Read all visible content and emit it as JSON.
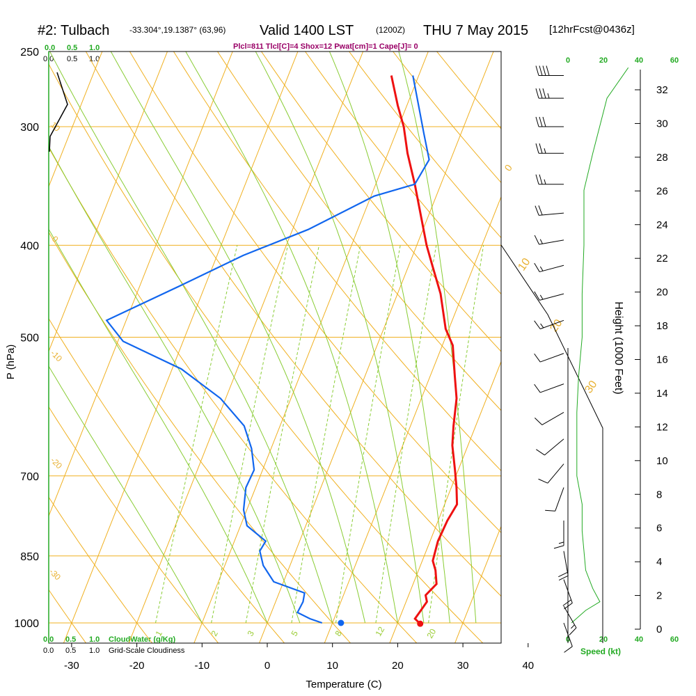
{
  "header": {
    "station": "#2: Tulbach",
    "coords": "-33.304°,19.1387° (63,96)",
    "valid": "Valid 1400 LST",
    "zulu": "(1200Z)",
    "date": "THU 7 May 2015",
    "forecast": "[12hrFcst@0436z]",
    "indices": "Plcl=811 Tlcl[C]=4 Shox=12 Pwat[cm]=1 Cape[J]= 0"
  },
  "cloud_scales": {
    "top_green": [
      "0.0",
      "0.5",
      "1.0"
    ],
    "top_black": [
      "0.0",
      "0.5",
      "1.0"
    ],
    "bottom_green": [
      "0.0",
      "0.5",
      "1.0"
    ],
    "bottom_green_label": "CloudWater (g/Kg)",
    "bottom_black": [
      "0.0",
      "0.5",
      "1.0"
    ],
    "bottom_black_label": "Grid-Scale Cloudiness"
  },
  "speed_axis": {
    "ticks_top": [
      "0",
      "20",
      "40",
      "60"
    ],
    "ticks_bottom": [
      "0",
      "20",
      "40",
      "60"
    ],
    "label": "Speed (kt)"
  },
  "isotherm_labels": [
    "0",
    "10",
    "20",
    "30"
  ],
  "dry_adiabat_labels": [
    "10",
    "0",
    "-10",
    "-20",
    "-30"
  ],
  "mixing_ratio_labels": [
    "1",
    "2",
    "3",
    "5",
    "8",
    "12",
    "20"
  ],
  "colors": {
    "temperature": "#ee1111",
    "dewpoint": "#1166ee",
    "isobar_isotherm": "#f0b020",
    "dry_adiabat": "#f0b020",
    "moist_adiabat": "#88cc33",
    "mixing_ratio": "#88cc33",
    "wind_speed": "#22aa22"
  },
  "chart_data": {
    "type": "line",
    "title": "#2: Tulbach",
    "xlabel": "Temperature (C)",
    "ylabel": "P (hPa)",
    "y2label": "Height (1000 Feet)",
    "x_ticks": [
      -30,
      -20,
      -10,
      0,
      10,
      20,
      30,
      40
    ],
    "p_ticks": [
      250,
      300,
      400,
      500,
      700,
      850,
      1000
    ],
    "height_ticks": [
      0,
      2,
      4,
      6,
      8,
      10,
      12,
      14,
      16,
      18,
      20,
      22,
      24,
      26,
      28,
      30,
      32
    ],
    "series": [
      {
        "name": "temperature",
        "points": [
          [
            23.5,
            1002
          ],
          [
            22.4,
            990
          ],
          [
            22.7,
            975
          ],
          [
            23.2,
            950
          ],
          [
            22.6,
            935
          ],
          [
            23.6,
            910
          ],
          [
            22.6,
            880
          ],
          [
            21.6,
            860
          ],
          [
            21.2,
            820
          ],
          [
            21.4,
            780
          ],
          [
            21.9,
            750
          ],
          [
            20.8,
            720
          ],
          [
            19.5,
            690
          ],
          [
            17.6,
            650
          ],
          [
            16.6,
            620
          ],
          [
            15.4,
            580
          ],
          [
            13.8,
            550
          ],
          [
            11.6,
            510
          ],
          [
            9.5,
            490
          ],
          [
            6.6,
            450
          ],
          [
            3.6,
            420
          ],
          [
            1.5,
            400
          ],
          [
            -1.4,
            370
          ],
          [
            -4.0,
            345
          ],
          [
            -7.0,
            320
          ],
          [
            -9.2,
            300
          ],
          [
            -11.4,
            285
          ],
          [
            -14.2,
            265
          ]
        ]
      },
      {
        "name": "dewpoint",
        "points": [
          [
            8.4,
            1000
          ],
          [
            6.3,
            990
          ],
          [
            4.0,
            975
          ],
          [
            4.2,
            950
          ],
          [
            3.9,
            930
          ],
          [
            -1.5,
            905
          ],
          [
            -4.1,
            870
          ],
          [
            -5.5,
            840
          ],
          [
            -5.2,
            820
          ],
          [
            -9.0,
            790
          ],
          [
            -10.5,
            760
          ],
          [
            -11.5,
            720
          ],
          [
            -11.3,
            690
          ],
          [
            -13.0,
            655
          ],
          [
            -15.5,
            620
          ],
          [
            -20.8,
            580
          ],
          [
            -28.6,
            540
          ],
          [
            -39.2,
            505
          ],
          [
            -43.0,
            480
          ],
          [
            -33.5,
            440
          ],
          [
            -26.0,
            410
          ],
          [
            -17.6,
            385
          ],
          [
            -9.5,
            355
          ],
          [
            -4.0,
            345
          ],
          [
            -3.3,
            325
          ],
          [
            -5.7,
            305
          ],
          [
            -8.2,
            285
          ],
          [
            -10.9,
            265
          ]
        ]
      },
      {
        "name": "surface_dewpoint",
        "points": [
          [
            11.3,
            1000
          ]
        ]
      }
    ],
    "wind_speed_profile": [
      [
        2,
        1000
      ],
      [
        10,
        970
      ],
      [
        18,
        950
      ],
      [
        14,
        920
      ],
      [
        10,
        880
      ],
      [
        8,
        800
      ],
      [
        8,
        750
      ],
      [
        5,
        700
      ],
      [
        5,
        650
      ],
      [
        5,
        600
      ],
      [
        6,
        550
      ],
      [
        8,
        500
      ],
      [
        8,
        450
      ],
      [
        9,
        400
      ],
      [
        9,
        350
      ],
      [
        14,
        320
      ],
      [
        22,
        280
      ],
      [
        34,
        260
      ]
    ],
    "wind_barbs": [
      {
        "p": 265,
        "dir": 270,
        "spd": 40
      },
      {
        "p": 280,
        "dir": 270,
        "spd": 35
      },
      {
        "p": 300,
        "dir": 270,
        "spd": 30
      },
      {
        "p": 320,
        "dir": 270,
        "spd": 25
      },
      {
        "p": 345,
        "dir": 270,
        "spd": 25
      },
      {
        "p": 370,
        "dir": 265,
        "spd": 20
      },
      {
        "p": 395,
        "dir": 260,
        "spd": 15
      },
      {
        "p": 420,
        "dir": 255,
        "spd": 15
      },
      {
        "p": 450,
        "dir": 255,
        "spd": 15
      },
      {
        "p": 480,
        "dir": 250,
        "spd": 15
      },
      {
        "p": 520,
        "dir": 250,
        "spd": 10
      },
      {
        "p": 560,
        "dir": 250,
        "spd": 10
      },
      {
        "p": 600,
        "dir": 240,
        "spd": 10
      },
      {
        "p": 640,
        "dir": 230,
        "spd": 10
      },
      {
        "p": 680,
        "dir": 220,
        "spd": 10
      },
      {
        "p": 720,
        "dir": 200,
        "spd": 10
      },
      {
        "p": 780,
        "dir": 180,
        "spd": 15
      },
      {
        "p": 840,
        "dir": 170,
        "spd": 20
      },
      {
        "p": 900,
        "dir": 160,
        "spd": 20
      },
      {
        "p": 960,
        "dir": 150,
        "spd": 15
      },
      {
        "p": 1000,
        "dir": 160,
        "spd": 10
      }
    ]
  }
}
